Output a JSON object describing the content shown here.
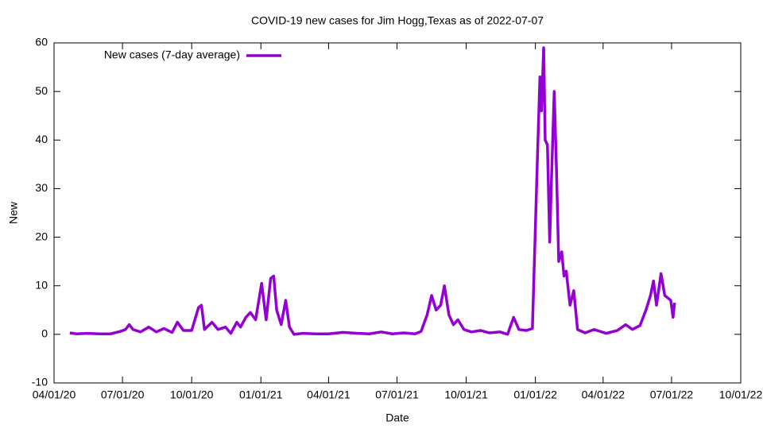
{
  "chart_data": {
    "type": "line",
    "title": "COVID-19 new cases for Jim Hogg,Texas as of 2022-07-07",
    "x_label": "Date",
    "y_label": "New",
    "legend": "top-left",
    "xlim": [
      "2020-04-01",
      "2022-10-01"
    ],
    "xticks": [
      {
        "value": "2020-04-01",
        "label": "04/01/20"
      },
      {
        "value": "2020-07-01",
        "label": "07/01/20"
      },
      {
        "value": "2020-10-01",
        "label": "10/01/20"
      },
      {
        "value": "2021-01-01",
        "label": "01/01/21"
      },
      {
        "value": "2021-04-01",
        "label": "04/01/21"
      },
      {
        "value": "2021-07-01",
        "label": "07/01/21"
      },
      {
        "value": "2021-10-01",
        "label": "10/01/21"
      },
      {
        "value": "2022-01-01",
        "label": "01/01/22"
      },
      {
        "value": "2022-04-01",
        "label": "04/01/22"
      },
      {
        "value": "2022-07-01",
        "label": "07/01/22"
      },
      {
        "value": "2022-10-01",
        "label": "10/01/22"
      }
    ],
    "ylim": [
      -10,
      60
    ],
    "yticks": [
      -10,
      0,
      10,
      20,
      30,
      40,
      50,
      60
    ],
    "x": [
      "2020-04-22",
      "2020-05-01",
      "2020-05-15",
      "2020-06-01",
      "2020-06-15",
      "2020-06-28",
      "2020-07-05",
      "2020-07-10",
      "2020-07-15",
      "2020-07-25",
      "2020-08-05",
      "2020-08-15",
      "2020-08-25",
      "2020-09-05",
      "2020-09-12",
      "2020-09-20",
      "2020-10-01",
      "2020-10-10",
      "2020-10-14",
      "2020-10-18",
      "2020-10-28",
      "2020-11-05",
      "2020-11-15",
      "2020-11-22",
      "2020-11-30",
      "2020-12-05",
      "2020-12-12",
      "2020-12-18",
      "2020-12-25",
      "2021-01-02",
      "2021-01-08",
      "2021-01-14",
      "2021-01-18",
      "2021-01-22",
      "2021-01-28",
      "2021-02-03",
      "2021-02-08",
      "2021-02-14",
      "2021-02-25",
      "2021-03-15",
      "2021-04-01",
      "2021-04-20",
      "2021-05-10",
      "2021-05-25",
      "2021-06-10",
      "2021-06-25",
      "2021-07-10",
      "2021-07-25",
      "2021-08-02",
      "2021-08-10",
      "2021-08-16",
      "2021-08-22",
      "2021-08-28",
      "2021-09-02",
      "2021-09-08",
      "2021-09-14",
      "2021-09-20",
      "2021-09-28",
      "2021-10-08",
      "2021-10-20",
      "2021-11-01",
      "2021-11-15",
      "2021-11-25",
      "2021-12-03",
      "2021-12-10",
      "2021-12-20",
      "2021-12-28",
      "2022-01-04",
      "2022-01-07",
      "2022-01-09",
      "2022-01-12",
      "2022-01-14",
      "2022-01-17",
      "2022-01-20",
      "2022-01-22",
      "2022-01-26",
      "2022-01-29",
      "2022-02-01",
      "2022-02-05",
      "2022-02-08",
      "2022-02-11",
      "2022-02-16",
      "2022-02-21",
      "2022-02-26",
      "2022-03-08",
      "2022-03-20",
      "2022-04-05",
      "2022-04-20",
      "2022-05-01",
      "2022-05-10",
      "2022-05-20",
      "2022-05-28",
      "2022-06-03",
      "2022-06-07",
      "2022-06-11",
      "2022-06-17",
      "2022-06-22",
      "2022-06-30",
      "2022-07-03",
      "2022-07-05"
    ],
    "series": [
      {
        "name": "New cases (7-day average)",
        "color": "#9400d3",
        "values": [
          0.3,
          0.1,
          0.2,
          0.1,
          0.1,
          0.6,
          1.0,
          2.0,
          1.0,
          0.5,
          1.5,
          0.5,
          1.2,
          0.4,
          2.5,
          0.8,
          0.8,
          5.5,
          6.0,
          1.0,
          2.5,
          1.0,
          1.5,
          0.2,
          2.5,
          1.5,
          3.5,
          4.5,
          3.0,
          10.5,
          3.0,
          11.5,
          12.0,
          5.0,
          2.0,
          7.0,
          1.5,
          0.0,
          0.2,
          0.1,
          0.1,
          0.4,
          0.2,
          0.1,
          0.5,
          0.1,
          0.3,
          0.1,
          0.6,
          4.0,
          8.0,
          5.0,
          6.0,
          10.0,
          4.0,
          2.0,
          3.0,
          1.0,
          0.5,
          0.8,
          0.3,
          0.5,
          0.0,
          3.5,
          1.0,
          0.8,
          1.2,
          38,
          53,
          46,
          59,
          40,
          39,
          19,
          30,
          50,
          34,
          15,
          17,
          12,
          13,
          6,
          9,
          1,
          0.3,
          1.0,
          0.2,
          0.8,
          2.0,
          1.0,
          1.8,
          5.0,
          8.0,
          11.0,
          6.0,
          12.5,
          8.0,
          7.0,
          3.5,
          6.5
        ]
      }
    ]
  }
}
